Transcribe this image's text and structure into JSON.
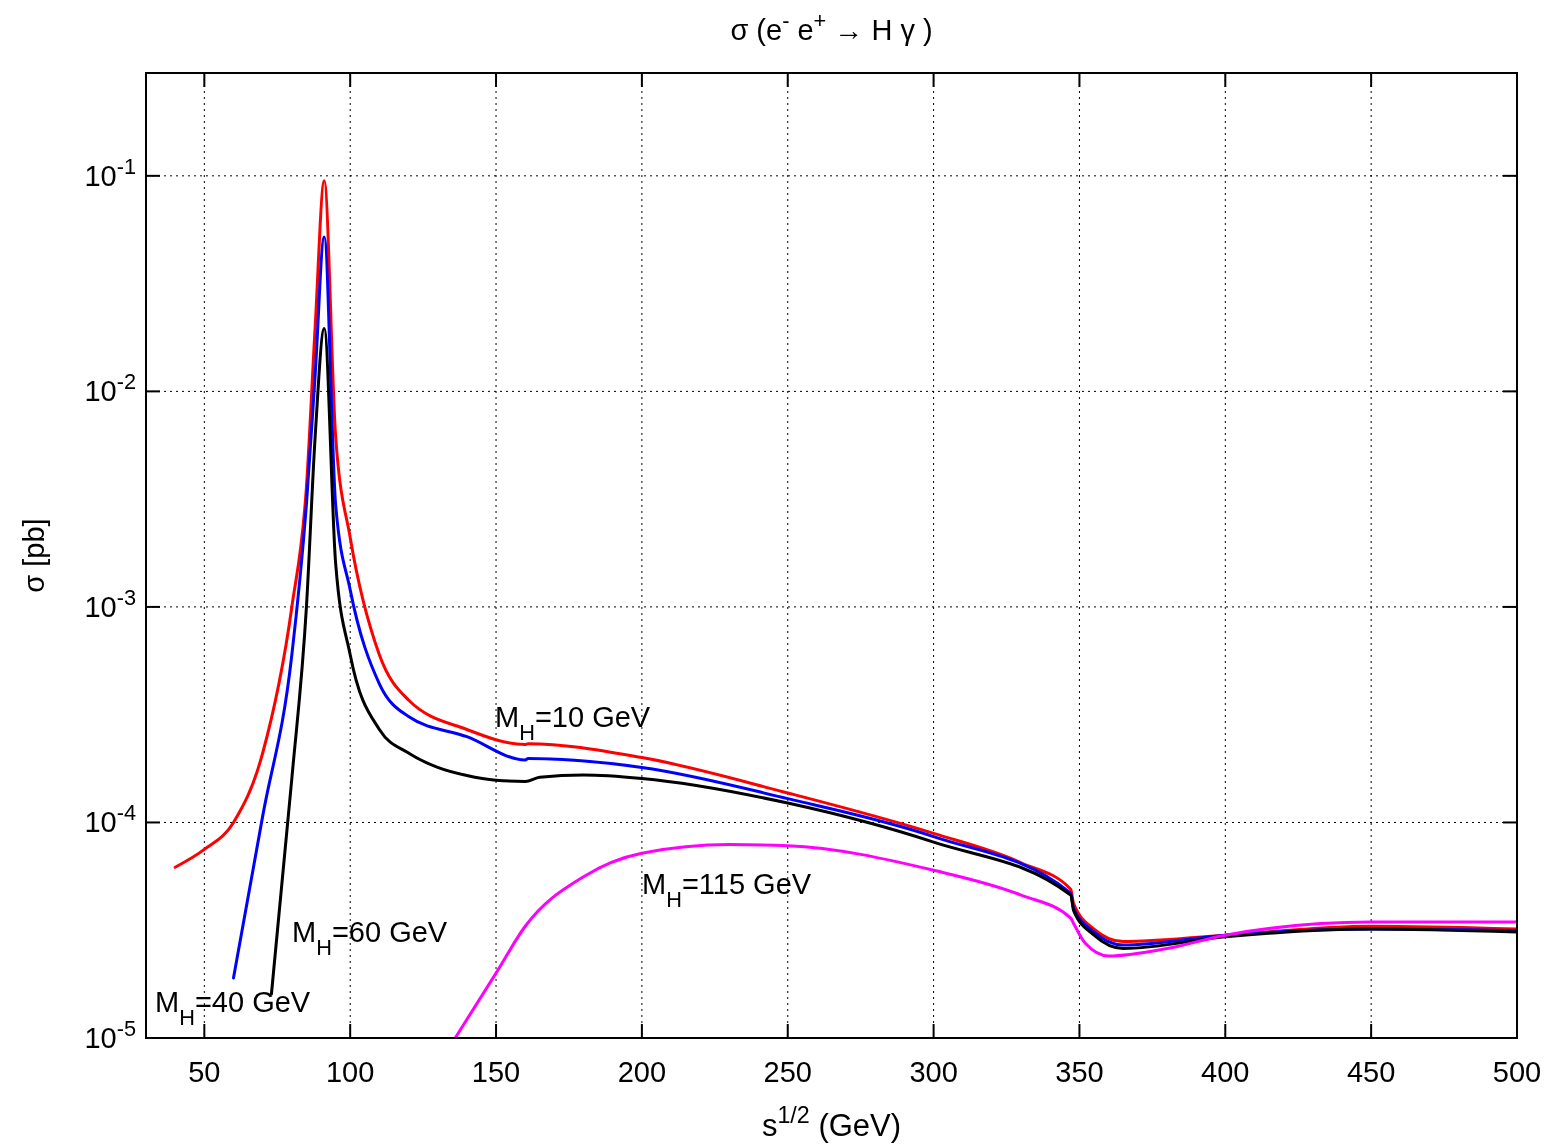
{
  "chart_data": {
    "type": "line",
    "title": "σ (e$^{-}$ e$^{+}$ → H  γ )",
    "xlabel": "s$^{1/2}$ (GeV)",
    "ylabel": "σ [pb]",
    "log": "y",
    "grid": true,
    "line_style": "solid",
    "marker": "none",
    "xlim": [
      30,
      500
    ],
    "xticks": [
      50,
      100,
      150,
      200,
      250,
      300,
      350,
      400,
      450,
      500
    ],
    "ylim": [
      1e-05,
      0.3
    ],
    "yticks": [
      {
        "value": 1e-05,
        "label": "10$^{-5}$"
      },
      {
        "value": 0.0001,
        "label": "10$^{-4}$"
      },
      {
        "value": 0.001,
        "label": "10$^{-3}$"
      },
      {
        "value": 0.01,
        "label": "10$^{-2}$"
      },
      {
        "value": 0.1,
        "label": "10$^{-1}$"
      }
    ],
    "series": [
      {
        "name": "M$_{H}$=10 GeV",
        "color": "#ff0000",
        "x": [
          40,
          50,
          60,
          70,
          80,
          85,
          88,
          91.1,
          95,
          100,
          110,
          120,
          140,
          160,
          161,
          200,
          250,
          300,
          330,
          347,
          348,
          355,
          365,
          400,
          450,
          500
        ],
        "values": [
          6.2e-05,
          7.5e-05,
          0.0001,
          0.00021,
          0.001,
          0.0036,
          0.02,
          0.095,
          0.0062,
          0.0021,
          0.0006,
          0.00037,
          0.00027,
          0.00023,
          0.000232,
          0.0002,
          0.000137,
          8.9e-05,
          6.5e-05,
          4.9e-05,
          4.2e-05,
          3.2e-05,
          2.8e-05,
          3e-05,
          3.3e-05,
          3.2e-05
        ]
      },
      {
        "name": "M$_{H}$=40 GeV",
        "color": "#0000ff",
        "x": [
          60,
          70,
          80,
          85,
          88,
          91.1,
          95,
          100,
          110,
          120,
          140,
          160,
          161,
          200,
          250,
          300,
          347,
          348,
          355,
          365,
          400,
          450,
          500
        ],
        "values": [
          1.9e-05,
          0.000107,
          0.0006,
          0.003,
          0.012,
          0.052,
          0.003,
          0.0012,
          0.00044,
          0.00031,
          0.00025,
          0.000195,
          0.000198,
          0.00018,
          0.000129,
          8.6e-05,
          4.7e-05,
          4e-05,
          3.1e-05,
          2.7e-05,
          3e-05,
          3.2e-05,
          3.15e-05
        ]
      },
      {
        "name": "M$_{H}$=60 GeV",
        "color": "#000000",
        "x": [
          73,
          80,
          85,
          88,
          91.1,
          95,
          100,
          110,
          120,
          130,
          140,
          150,
          160,
          165,
          180,
          200,
          250,
          300,
          347,
          348,
          355,
          365,
          400,
          450,
          500
        ],
        "values": [
          1.6e-05,
          0.00016,
          0.001,
          0.0062,
          0.0196,
          0.0016,
          0.0006,
          0.00027,
          0.00021,
          0.00018,
          0.000165,
          0.000157,
          0.000155,
          0.000162,
          0.000166,
          0.00016,
          0.000123,
          8.1e-05,
          4.6e-05,
          3.9e-05,
          3e-05,
          2.6e-05,
          2.95e-05,
          3.2e-05,
          3.1e-05
        ]
      },
      {
        "name": "M$_{H}$=115 GeV",
        "color": "#ff00ff",
        "x": [
          136,
          150,
          160,
          180,
          200,
          230,
          250,
          300,
          330,
          347,
          348,
          352,
          360,
          380,
          400,
          450,
          500
        ],
        "values": [
          1e-05,
          2e-05,
          3.3e-05,
          5.6e-05,
          7.2e-05,
          7.9e-05,
          7.8e-05,
          6e-05,
          4.6e-05,
          3.6e-05,
          3.4e-05,
          2.75e-05,
          2.4e-05,
          2.6e-05,
          3e-05,
          3.45e-05,
          3.45e-05
        ]
      }
    ]
  }
}
